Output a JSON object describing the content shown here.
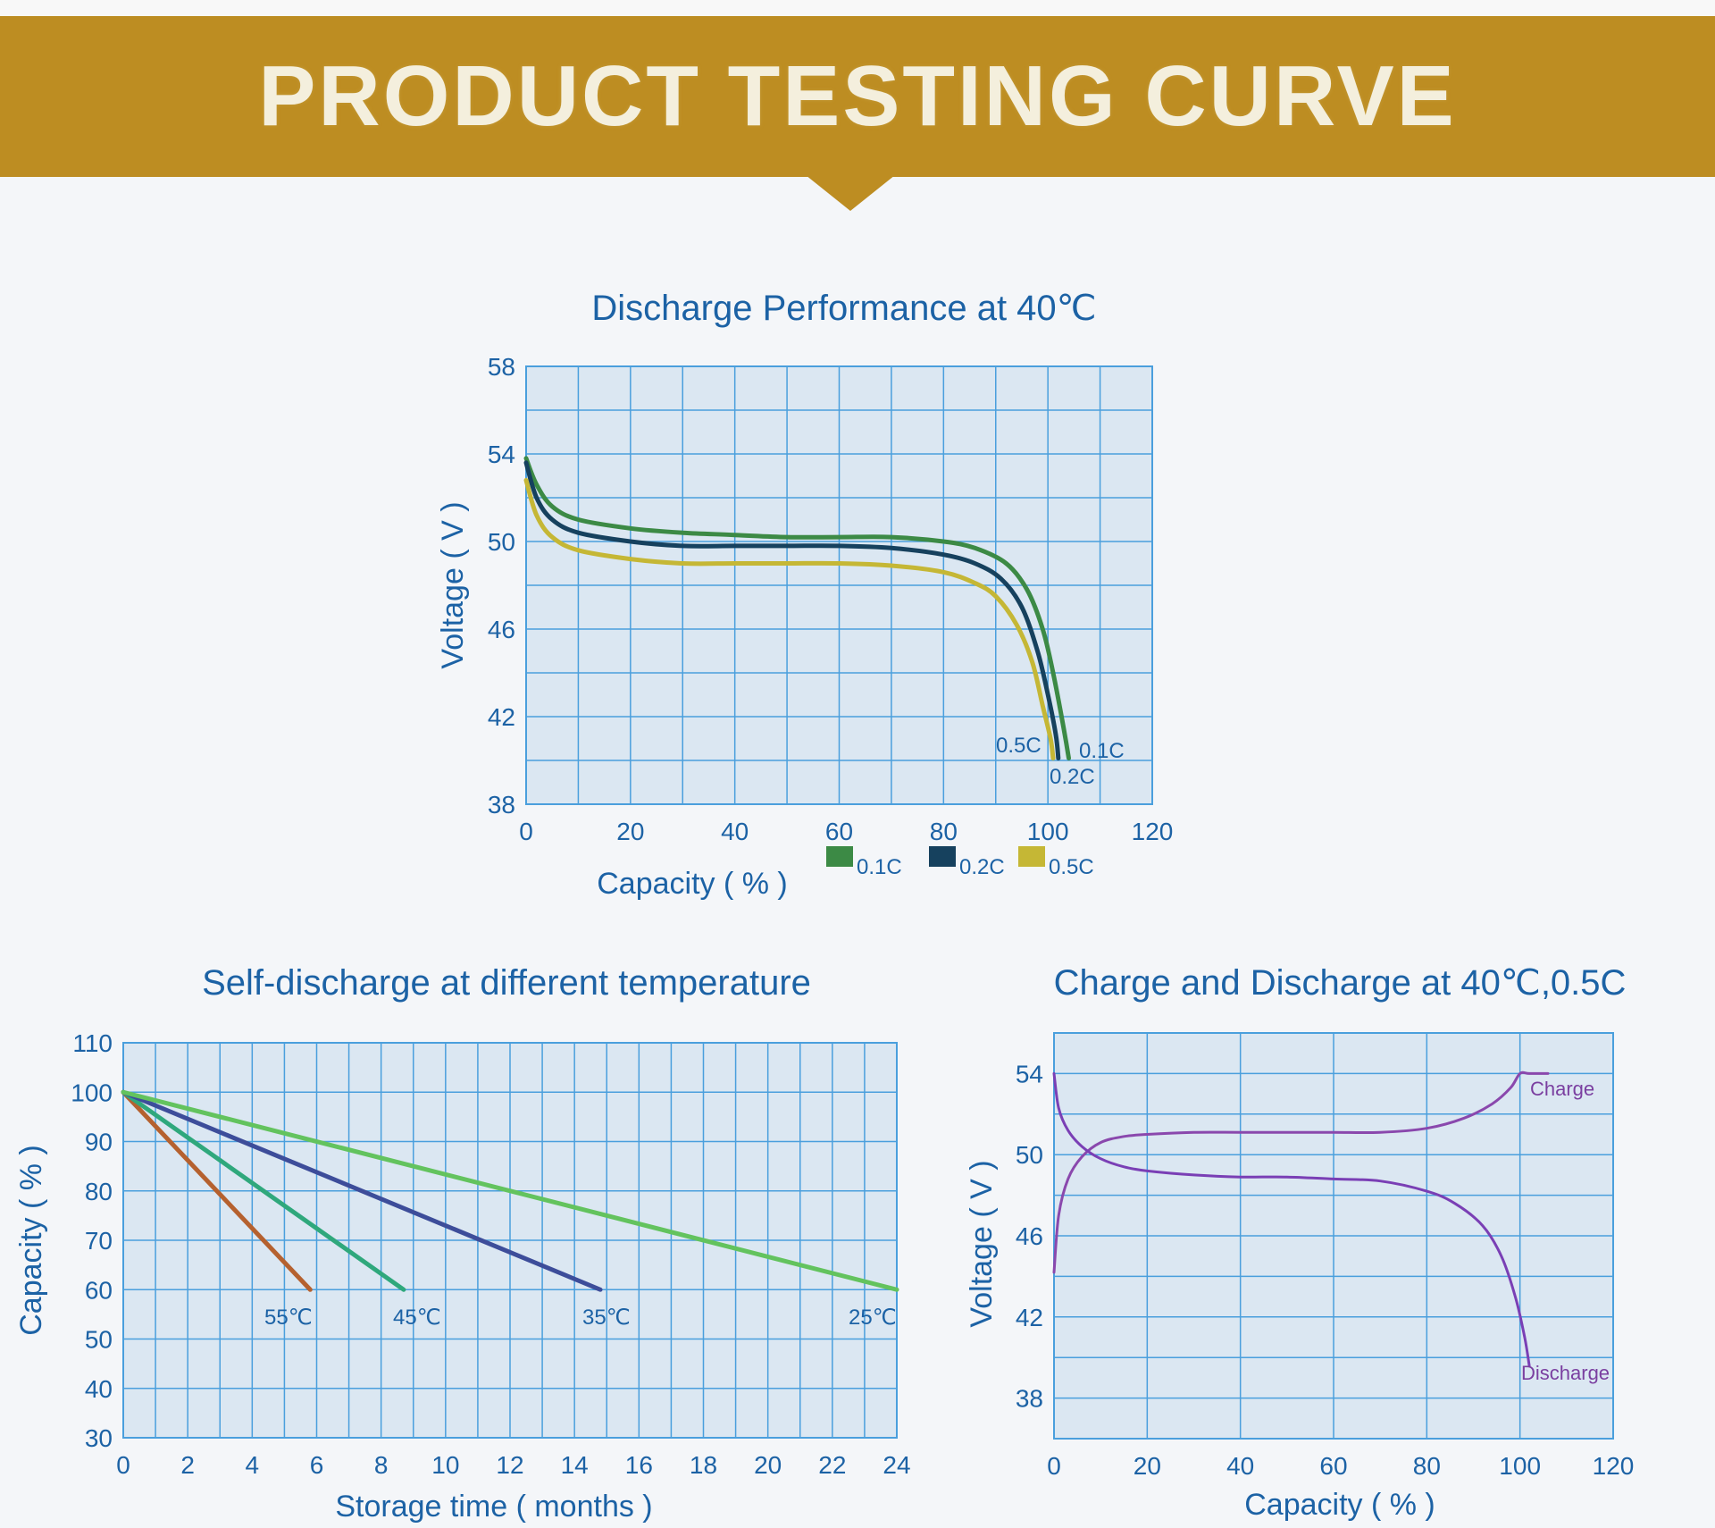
{
  "banner": {
    "title": "PRODUCT TESTING CURVE"
  },
  "chart_data": [
    {
      "type": "line",
      "title": "Discharge Performance at 40℃",
      "xlabel": "Capacity ( % )",
      "ylabel": "Voltage ( V )",
      "xlim": [
        0,
        120
      ],
      "ylim": [
        38,
        58
      ],
      "xticks": [
        0,
        20,
        40,
        60,
        80,
        100,
        120
      ],
      "yticks": [
        38,
        42,
        46,
        50,
        54,
        58
      ],
      "grid": true,
      "legend": "bottom",
      "series": [
        {
          "name": "0.1C",
          "label": "0.1C",
          "color": "#3c8a45",
          "x": [
            0,
            2,
            5,
            10,
            20,
            30,
            40,
            50,
            60,
            70,
            80,
            86,
            92,
            96,
            99,
            101,
            103,
            104
          ],
          "y": [
            53.8,
            52.6,
            51.6,
            51.0,
            50.6,
            50.4,
            50.3,
            50.2,
            50.2,
            50.2,
            50.0,
            49.7,
            49.0,
            47.8,
            46.0,
            44.0,
            41.5,
            40.1
          ]
        },
        {
          "name": "0.2C",
          "label": "0.2C",
          "color": "#16415e",
          "x": [
            0,
            2,
            5,
            10,
            20,
            30,
            40,
            50,
            60,
            70,
            80,
            86,
            91,
            95,
            98,
            100,
            101.5,
            102
          ],
          "y": [
            53.6,
            52.0,
            51.0,
            50.4,
            50.0,
            49.8,
            49.8,
            49.8,
            49.8,
            49.7,
            49.4,
            49.0,
            48.3,
            47.0,
            45.0,
            43.0,
            41.2,
            40.1
          ]
        },
        {
          "name": "0.5C",
          "label": "0.5C",
          "color": "#c5b735",
          "x": [
            0,
            2,
            5,
            10,
            20,
            30,
            40,
            50,
            60,
            70,
            80,
            86,
            90,
            94,
            97,
            99,
            100.5,
            101
          ],
          "y": [
            52.8,
            51.2,
            50.2,
            49.6,
            49.2,
            49.0,
            49.0,
            49.0,
            49.0,
            48.9,
            48.6,
            48.1,
            47.5,
            46.2,
            44.5,
            42.5,
            41.0,
            40.1
          ]
        }
      ]
    },
    {
      "type": "line",
      "title": "Self-discharge at different temperature",
      "xlabel": "Storage time ( months )",
      "ylabel": "Capacity ( % )",
      "xlim": [
        0,
        24
      ],
      "ylim": [
        30,
        110
      ],
      "xticks": [
        0,
        2,
        4,
        6,
        8,
        10,
        12,
        14,
        16,
        18,
        20,
        22,
        24
      ],
      "yticks": [
        30,
        40,
        50,
        60,
        70,
        80,
        90,
        100,
        110
      ],
      "grid": true,
      "series": [
        {
          "name": "55℃",
          "label": "55℃",
          "color": "#b5612f",
          "x": [
            0,
            5.8
          ],
          "y": [
            100,
            60
          ]
        },
        {
          "name": "45℃",
          "label": "45℃",
          "color": "#2fa87c",
          "x": [
            0,
            8.7
          ],
          "y": [
            100,
            60
          ]
        },
        {
          "name": "35℃",
          "label": "35℃",
          "color": "#3d4d9a",
          "x": [
            0,
            14.8
          ],
          "y": [
            100,
            60
          ]
        },
        {
          "name": "25℃",
          "label": "25℃",
          "color": "#63c35e",
          "x": [
            0,
            24
          ],
          "y": [
            100,
            60
          ]
        }
      ]
    },
    {
      "type": "line",
      "title": "Charge and Discharge at 40℃,0.5C",
      "xlabel": "Capacity ( % )",
      "ylabel": "Voltage ( V )",
      "xlim": [
        0,
        120
      ],
      "ylim": [
        36,
        56
      ],
      "xticks": [
        0,
        20,
        40,
        60,
        80,
        100,
        120
      ],
      "yticks": [
        38,
        42,
        46,
        50,
        54
      ],
      "grid": true,
      "series": [
        {
          "name": "Charge",
          "label": "Charge",
          "color": "#8a48ad",
          "x": [
            0,
            1,
            3,
            6,
            10,
            15,
            20,
            30,
            40,
            50,
            60,
            70,
            80,
            88,
            94,
            98,
            100,
            102,
            106
          ],
          "y": [
            44.2,
            47.0,
            48.8,
            49.9,
            50.6,
            50.9,
            51.0,
            51.1,
            51.1,
            51.1,
            51.1,
            51.1,
            51.3,
            51.8,
            52.5,
            53.3,
            54.0,
            54.0,
            54.0
          ]
        },
        {
          "name": "Discharge",
          "label": "Discharge",
          "color": "#7a3fb5",
          "x": [
            0,
            1,
            3,
            6,
            10,
            15,
            20,
            30,
            40,
            50,
            60,
            70,
            80,
            86,
            92,
            96,
            99,
            101,
            102
          ],
          "y": [
            54.0,
            52.3,
            51.2,
            50.4,
            49.8,
            49.4,
            49.2,
            49.0,
            48.9,
            48.9,
            48.8,
            48.7,
            48.2,
            47.6,
            46.5,
            45.0,
            43.0,
            41.0,
            39.6
          ]
        }
      ]
    }
  ]
}
